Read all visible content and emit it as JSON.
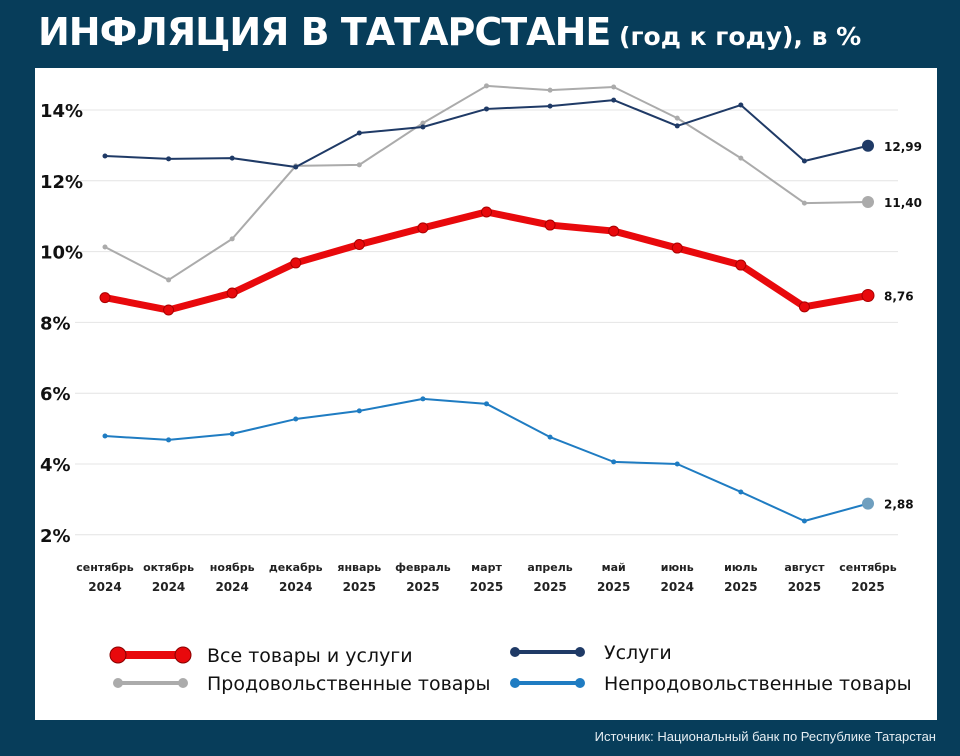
{
  "title": {
    "main": "ИНФЛЯЦИЯ В ТАТАРСТАНЕ",
    "sub": " (год к году), в %"
  },
  "source": "Источник: Национальный банк по Республике Татарстан",
  "chart_data": {
    "type": "line",
    "title": "ИНФЛЯЦИЯ В ТАТАРСТАНЕ (год к году), в %",
    "categories": [
      [
        "сентябрь",
        "2024"
      ],
      [
        "октябрь",
        "2024"
      ],
      [
        "ноябрь",
        "2024"
      ],
      [
        "декабрь",
        "2024"
      ],
      [
        "январь",
        "2025"
      ],
      [
        "февраль",
        "2025"
      ],
      [
        "март",
        "2025"
      ],
      [
        "апрель",
        "2025"
      ],
      [
        "май",
        "2025"
      ],
      [
        "июнь",
        "2024"
      ],
      [
        "июль",
        "2025"
      ],
      [
        "август",
        "2025"
      ],
      [
        "сентябрь",
        "2025"
      ]
    ],
    "y_ticks": [
      "2%",
      "4%",
      "6%",
      "8%",
      "10%",
      "12%",
      "14%"
    ],
    "y_tick_values": [
      2,
      4,
      6,
      8,
      10,
      12,
      14
    ],
    "ylim": [
      1.5,
      15
    ],
    "grid": true,
    "legend_placement": "bottom",
    "series": [
      {
        "name": "Все товары и услуги",
        "color": "#e8090c",
        "values": [
          8.7,
          8.35,
          8.83,
          9.68,
          10.2,
          10.67,
          11.12,
          10.75,
          10.58,
          10.1,
          9.62,
          8.44,
          8.76
        ],
        "end_label": "8,76"
      },
      {
        "name": "Услуги",
        "color": "#1f3a66",
        "values": [
          12.7,
          12.62,
          12.64,
          12.39,
          13.35,
          13.52,
          14.03,
          14.11,
          14.28,
          13.55,
          14.14,
          12.56,
          12.99
        ],
        "end_label": "12,99"
      },
      {
        "name": "Продовольственные товары",
        "color": "#ababab",
        "values": [
          10.13,
          9.2,
          10.36,
          12.42,
          12.45,
          13.63,
          14.68,
          14.56,
          14.65,
          13.77,
          12.64,
          11.37,
          11.4
        ],
        "end_label": "11,40"
      },
      {
        "name": "Непродовольственные товары",
        "color": "#1f7cc2",
        "end_color": "#6f9fbf",
        "values": [
          4.79,
          4.68,
          4.85,
          5.27,
          5.5,
          5.84,
          5.7,
          4.76,
          4.06,
          4.0,
          3.21,
          2.39,
          2.88
        ],
        "end_label": "2,88"
      }
    ]
  }
}
